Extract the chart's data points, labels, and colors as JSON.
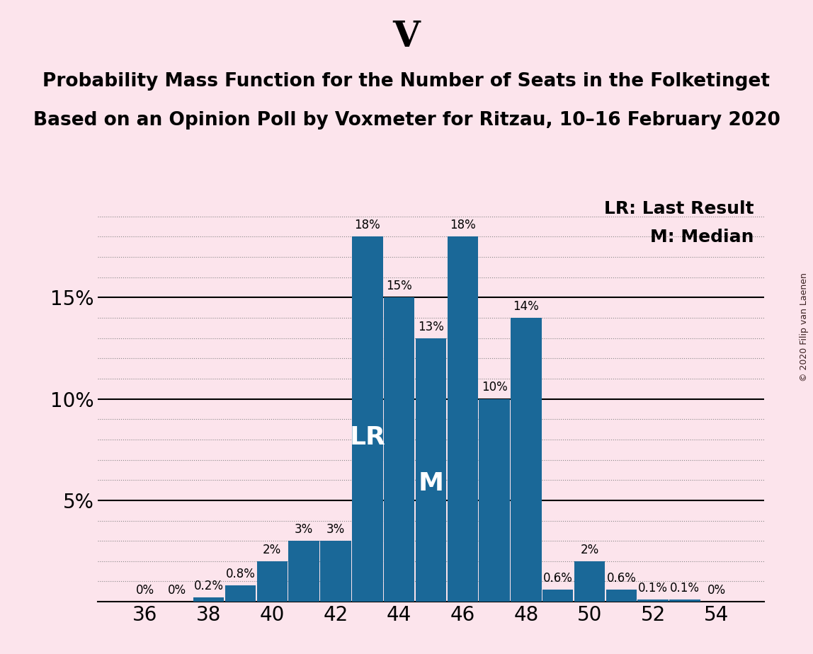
{
  "title_party": "V",
  "title_line1": "Probability Mass Function for the Number of Seats in the Folketinget",
  "title_line2": "Based on an Opinion Poll by Voxmeter for Ritzau, 10–16 February 2020",
  "copyright": "© 2020 Filip van Laenen",
  "legend_lr": "LR: Last Result",
  "legend_m": "M: Median",
  "seats": [
    36,
    37,
    38,
    39,
    40,
    41,
    42,
    43,
    44,
    45,
    46,
    47,
    48,
    49,
    50,
    51,
    52,
    53,
    54
  ],
  "probabilities": [
    0.0,
    0.0,
    0.2,
    0.8,
    2.0,
    3.0,
    3.0,
    18.0,
    15.0,
    13.0,
    18.0,
    10.0,
    14.0,
    0.6,
    2.0,
    0.6,
    0.1,
    0.1,
    0.0
  ],
  "labels": [
    "0%",
    "0%",
    "0.2%",
    "0.8%",
    "2%",
    "3%",
    "3%",
    "18%",
    "15%",
    "13%",
    "18%",
    "10%",
    "14%",
    "0.6%",
    "2%",
    "0.6%",
    "0.1%",
    "0.1%",
    "0%"
  ],
  "bar_color": "#1a6898",
  "background_color": "#fce4ec",
  "lr_seat": 43,
  "median_seat": 45,
  "lr_label": "LR",
  "m_label": "M",
  "ylim": [
    0,
    20
  ],
  "ytick_positions": [
    0,
    5,
    10,
    15,
    20
  ],
  "ytick_labels": [
    "",
    "5%",
    "10%",
    "15%",
    ""
  ],
  "xtick_positions": [
    36,
    38,
    40,
    42,
    44,
    46,
    48,
    50,
    52,
    54
  ],
  "solid_hlines": [
    5,
    10,
    15
  ],
  "title_party_fontsize": 36,
  "title_line_fontsize": 19,
  "bar_label_fontsize": 12,
  "axis_fontsize": 20,
  "lr_m_label_fontsize": 26,
  "legend_fontsize": 18,
  "copyright_fontsize": 9,
  "dot_grid_color": "#888888",
  "dot_grid_linewidth": 0.8,
  "solid_line_color": "#000000",
  "solid_line_linewidth": 1.5,
  "num_dot_rows": 3
}
